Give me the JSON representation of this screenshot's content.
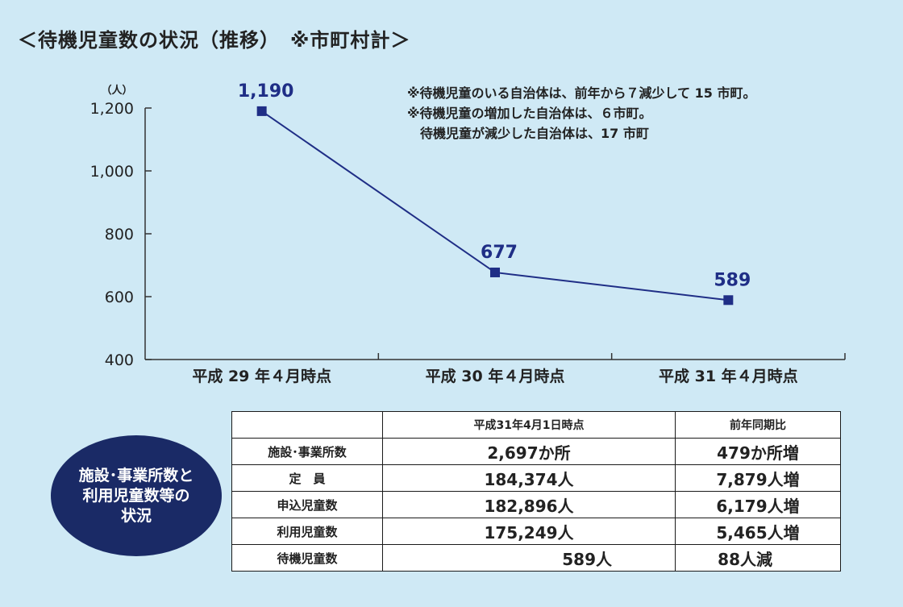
{
  "title": "＜待機児童数の状況（推移）　※市町村計＞",
  "notes": "※待機児童のいる自治体は、前年から７減少して 15 市町。\n※待機児童の増加した自治体は、６市町。\n　待機児童が減少した自治体は、17 市町",
  "colors": {
    "line": "#1f2e86",
    "axis": "#333333",
    "background": "#cfe9f5",
    "oval": "#1a2a66"
  },
  "chart_data": {
    "type": "line",
    "unit_label": "（人）",
    "categories": [
      "平成 29 年４月時点",
      "平成 30 年４月時点",
      "平成 31 年４月時点"
    ],
    "series": [
      {
        "values": [
          1190,
          677,
          589
        ]
      }
    ],
    "data_labels": [
      "1,190",
      "677",
      "589"
    ],
    "ylim": [
      400,
      1200
    ],
    "yticks": [
      400,
      600,
      800,
      1000,
      1200
    ],
    "ytick_labels": [
      "400",
      "600",
      "800",
      "1,000",
      "1,200"
    ],
    "grid": false,
    "marker": "square"
  },
  "summary": {
    "label": "施設･事業所数と\n利用児童数等の\n状況",
    "headers": [
      "",
      "平成31年4月1日時点",
      "前年同期比"
    ],
    "rows": [
      {
        "label": "施設･事業所数",
        "value": "2,697か所",
        "change": "479か所増"
      },
      {
        "label": "定　員",
        "value": "184,374人",
        "change": "7,879人増"
      },
      {
        "label": "申込児童数",
        "value": "182,896人",
        "change": "6,179人増"
      },
      {
        "label": "利用児童数",
        "value": "175,249人",
        "change": "5,465人増"
      },
      {
        "label": "待機児童数",
        "value": "589人",
        "change": "88人減"
      }
    ]
  }
}
